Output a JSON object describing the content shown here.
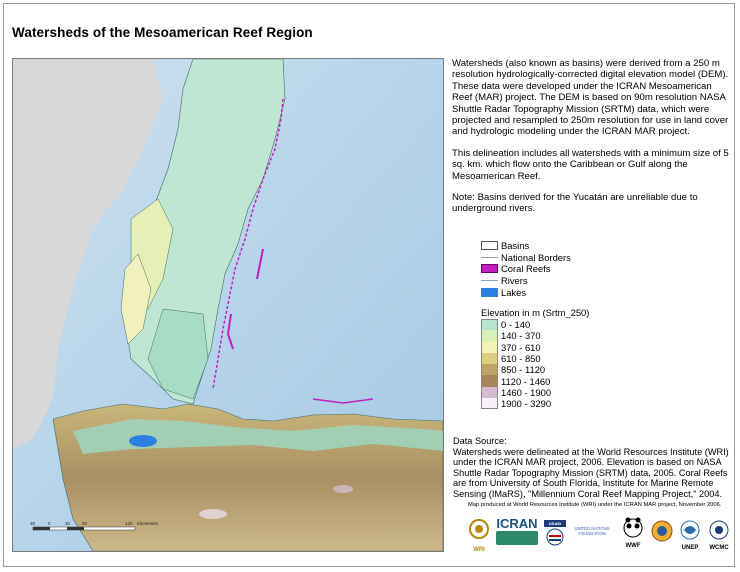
{
  "title": "Watersheds of the Mesoamerican Reef Region",
  "description": [
    "Watersheds (also known as basins) were derived from a 250 m resolution hydrologically-corrected digital elevation model (DEM). These data were developed under the ICRAN  Mesoamerican Reef (MAR) project. The DEM is based on 90m resolution NASA Shuttle Radar Topography Mission (SRTM) data, which were projected and resampled to 250m resolution for use in land cover and hydrologic modeling under the ICRAN MAR project.",
    "This delineation includes all watersheds with a minimum size of 5 sq. km. which  flow onto  the Caribbean or Gulf along the Mesoamerican Reef.",
    "Note: Basins derived for the Yucatán are unreliable due to underground rivers."
  ],
  "legend": {
    "items": [
      {
        "label": "Basins",
        "color": "#ffffff"
      },
      {
        "label": "National Borders",
        "color": "#ffffff"
      },
      {
        "label": "Coral Reefs",
        "color": "#c020c0"
      },
      {
        "label": "Rivers",
        "color": "#ffffff"
      },
      {
        "label": "Lakes",
        "color": "#2a7fe0"
      }
    ],
    "elevation_title": "Elevation in m (Srtm_250)",
    "elevation": [
      {
        "label": "0 - 140",
        "color": "#b7e4cf"
      },
      {
        "label": "140 - 370",
        "color": "#d9f0b8"
      },
      {
        "label": "370 - 610",
        "color": "#f4f2b6"
      },
      {
        "label": "610 - 850",
        "color": "#dccd80"
      },
      {
        "label": "850 - 1120",
        "color": "#bfa468"
      },
      {
        "label": "1120 - 1460",
        "color": "#a6845c"
      },
      {
        "label": "1460 - 1900",
        "color": "#d4bcd0"
      },
      {
        "label": "1900 - 3290",
        "color": "#f7f2f7"
      }
    ]
  },
  "source": {
    "heading": "Data Source:",
    "text": "Watersheds were delineated at the World Resources Institute (WRI) under the ICRAN MAR project, 2006. Elevation is based on NASA Shuttle Radar Topography Mission (SRTM) data, 2005. Coral Reefs are from University of South Florida, Institute for Marine Remote Sensing (IMaRS), \"Millennium Coral Reef Mapping Project,\" 2004."
  },
  "credit": "Map produced at World Resources Institute (WRI) under the ICRAN MAR project, November 2006.",
  "scale_bar": {
    "ticks": [
      "30",
      "0",
      "30",
      "60",
      "120"
    ],
    "unit": "Kilometers"
  },
  "logos": [
    "WRI",
    "ICRAN",
    "USAID",
    "UNITED NATIONS FOUNDATION",
    "WWF",
    "UNEP",
    "WCMC"
  ]
}
